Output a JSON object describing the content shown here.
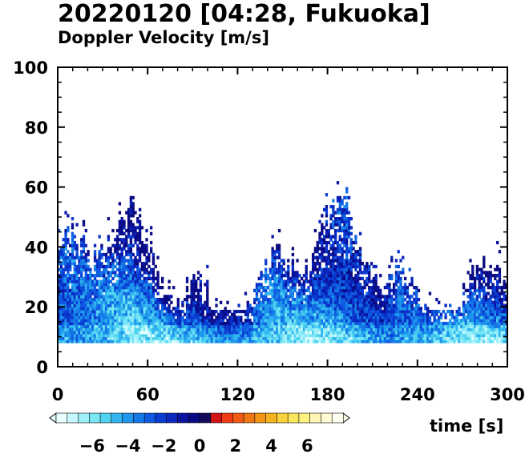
{
  "title": "20220120 [04:28, Fukuoka]",
  "subtitle": "Doppler Velocity [m/s]",
  "chart_data": {
    "type": "heatmap",
    "xlabel": "time [s]",
    "ylabel": "",
    "xlim": [
      0,
      300
    ],
    "ylim": [
      0,
      100
    ],
    "xticks": [
      0,
      60,
      120,
      180,
      240,
      300
    ],
    "yticks": [
      0,
      20,
      40,
      60,
      80,
      100
    ],
    "grid": false,
    "colorbar": {
      "range": [
        -8,
        8
      ],
      "tick_values": [
        -6,
        -4,
        -2,
        0,
        2,
        4,
        6
      ],
      "tick_labels": [
        "−6",
        "−4",
        "−2",
        "0",
        "2",
        "4",
        "6"
      ],
      "colors": [
        "#e8ffff",
        "#c8f8ff",
        "#a0f0fa",
        "#78e6f5",
        "#50d2f0",
        "#32b4f0",
        "#1e96eb",
        "#1478e6",
        "#0f5ae1",
        "#0a3cd2",
        "#0a28be",
        "#0a14a0",
        "#0a0a82",
        "#140a5a",
        "#d21414",
        "#f03c14",
        "#f05a14",
        "#f07814",
        "#f59614",
        "#f5b41e",
        "#fad23c",
        "#fae65a",
        "#fff082",
        "#fff5b4",
        "#fffad2",
        "#fffff0"
      ]
    },
    "data_extent": {
      "min_height": 8,
      "typical_top": [
        30,
        50
      ],
      "max_height": 64,
      "dominant_velocity_range": [
        -6,
        -1
      ],
      "note_colors": "mostly blue (negative velocities); strongest negative near 20 m height"
    }
  }
}
